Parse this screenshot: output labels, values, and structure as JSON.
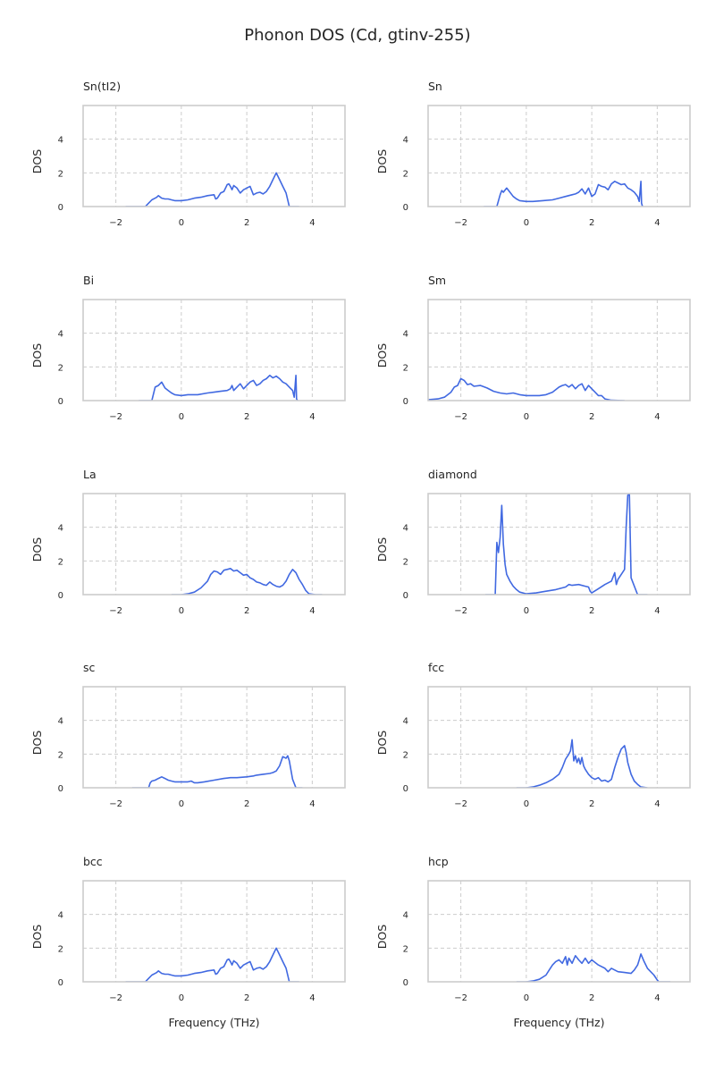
{
  "figure": {
    "title": "Phonon DOS (Cd, gtinv-255)"
  },
  "chart_data": [
    {
      "type": "line",
      "title": "Sn(tI2)",
      "xlabel": "",
      "ylabel": "DOS",
      "xlim": [
        -3,
        5
      ],
      "ylim": [
        0,
        6
      ],
      "xticks": [
        -2,
        0,
        2,
        4
      ],
      "yticks": [
        0,
        2,
        4
      ],
      "grid": true,
      "color": "#4169e1",
      "x": [
        -1.7,
        -1.1,
        -1.0,
        -0.9,
        -0.8,
        -0.75,
        -0.7,
        -0.6,
        -0.5,
        -0.4,
        -0.3,
        -0.2,
        0.0,
        0.2,
        0.4,
        0.6,
        0.8,
        1.0,
        1.05,
        1.1,
        1.2,
        1.3,
        1.4,
        1.45,
        1.5,
        1.55,
        1.6,
        1.7,
        1.8,
        1.9,
        2.0,
        2.1,
        2.2,
        2.3,
        2.4,
        2.5,
        2.6,
        2.7,
        2.8,
        2.9,
        3.0,
        3.1,
        3.2,
        3.3,
        3.6
      ],
      "y": [
        0,
        0,
        0.2,
        0.4,
        0.5,
        0.55,
        0.65,
        0.5,
        0.45,
        0.45,
        0.4,
        0.35,
        0.35,
        0.4,
        0.5,
        0.55,
        0.65,
        0.7,
        0.45,
        0.5,
        0.8,
        0.9,
        1.3,
        1.35,
        1.2,
        1.0,
        1.25,
        1.1,
        0.8,
        1.0,
        1.1,
        1.2,
        0.7,
        0.8,
        0.85,
        0.75,
        0.9,
        1.2,
        1.6,
        2.0,
        1.6,
        1.2,
        0.8,
        0.0,
        0.0
      ]
    },
    {
      "type": "line",
      "title": "Sn",
      "xlabel": "",
      "ylabel": "DOS",
      "xlim": [
        -3,
        5
      ],
      "ylim": [
        0,
        6
      ],
      "xticks": [
        -2,
        0,
        2,
        4
      ],
      "yticks": [
        0,
        2,
        4
      ],
      "grid": true,
      "color": "#4169e1",
      "x": [
        -1.3,
        -0.9,
        -0.8,
        -0.75,
        -0.7,
        -0.6,
        -0.5,
        -0.4,
        -0.3,
        -0.2,
        0.0,
        0.2,
        0.5,
        0.8,
        1.0,
        1.2,
        1.4,
        1.5,
        1.6,
        1.7,
        1.8,
        1.9,
        2.0,
        2.1,
        2.2,
        2.3,
        2.4,
        2.5,
        2.6,
        2.7,
        2.8,
        2.9,
        3.0,
        3.1,
        3.2,
        3.3,
        3.4,
        3.45,
        3.5,
        3.52,
        3.55
      ],
      "y": [
        0,
        0,
        0.7,
        0.95,
        0.85,
        1.1,
        0.85,
        0.6,
        0.45,
        0.35,
        0.3,
        0.3,
        0.35,
        0.4,
        0.5,
        0.6,
        0.7,
        0.75,
        0.85,
        1.05,
        0.75,
        1.1,
        0.6,
        0.75,
        1.3,
        1.2,
        1.15,
        1.0,
        1.35,
        1.5,
        1.4,
        1.3,
        1.35,
        1.1,
        1.0,
        0.85,
        0.6,
        0.3,
        1.5,
        0.2,
        0.0
      ]
    },
    {
      "type": "line",
      "title": "Bi",
      "xlabel": "",
      "ylabel": "DOS",
      "xlim": [
        -3,
        5
      ],
      "ylim": [
        0,
        6
      ],
      "xticks": [
        -2,
        0,
        2,
        4
      ],
      "yticks": [
        0,
        2,
        4
      ],
      "grid": true,
      "color": "#4169e1",
      "x": [
        -1.3,
        -0.9,
        -0.8,
        -0.7,
        -0.6,
        -0.5,
        -0.4,
        -0.3,
        -0.2,
        0.0,
        0.2,
        0.5,
        0.8,
        1.0,
        1.2,
        1.4,
        1.5,
        1.55,
        1.6,
        1.7,
        1.8,
        1.9,
        2.0,
        2.1,
        2.2,
        2.3,
        2.4,
        2.5,
        2.6,
        2.7,
        2.8,
        2.9,
        3.0,
        3.1,
        3.2,
        3.3,
        3.4,
        3.45,
        3.5,
        3.52,
        3.55
      ],
      "y": [
        0,
        0,
        0.8,
        0.9,
        1.1,
        0.75,
        0.6,
        0.45,
        0.35,
        0.3,
        0.35,
        0.35,
        0.45,
        0.5,
        0.55,
        0.6,
        0.7,
        0.9,
        0.6,
        0.8,
        1.0,
        0.7,
        0.9,
        1.1,
        1.2,
        0.9,
        1.0,
        1.2,
        1.3,
        1.5,
        1.35,
        1.45,
        1.3,
        1.1,
        1.0,
        0.8,
        0.6,
        0.2,
        1.5,
        0.1,
        0.0
      ]
    },
    {
      "type": "line",
      "title": "Sm",
      "xlabel": "",
      "ylabel": "DOS",
      "xlim": [
        -3,
        5
      ],
      "ylim": [
        0,
        6
      ],
      "xticks": [
        -2,
        0,
        2,
        4
      ],
      "yticks": [
        0,
        2,
        4
      ],
      "grid": true,
      "color": "#4169e1",
      "x": [
        -3.0,
        -2.7,
        -2.5,
        -2.3,
        -2.2,
        -2.1,
        -2.0,
        -1.9,
        -1.8,
        -1.7,
        -1.6,
        -1.4,
        -1.2,
        -1.0,
        -0.8,
        -0.6,
        -0.4,
        -0.2,
        0.0,
        0.2,
        0.4,
        0.6,
        0.8,
        1.0,
        1.1,
        1.2,
        1.3,
        1.4,
        1.5,
        1.6,
        1.7,
        1.8,
        1.9,
        2.0,
        2.1,
        2.2,
        2.3,
        2.4,
        2.6,
        3.0
      ],
      "y": [
        0.05,
        0.1,
        0.2,
        0.5,
        0.8,
        0.9,
        1.3,
        1.2,
        0.95,
        1.0,
        0.85,
        0.9,
        0.75,
        0.55,
        0.45,
        0.4,
        0.45,
        0.35,
        0.3,
        0.3,
        0.3,
        0.35,
        0.5,
        0.8,
        0.9,
        0.95,
        0.8,
        0.95,
        0.7,
        0.9,
        1.0,
        0.6,
        0.9,
        0.7,
        0.5,
        0.3,
        0.3,
        0.1,
        0.02,
        0.0
      ]
    },
    {
      "type": "line",
      "title": "La",
      "xlabel": "",
      "ylabel": "DOS",
      "xlim": [
        -3,
        5
      ],
      "ylim": [
        0,
        6
      ],
      "xticks": [
        -2,
        0,
        2,
        4
      ],
      "yticks": [
        0,
        2,
        4
      ],
      "grid": true,
      "color": "#4169e1",
      "x": [
        -0.3,
        0.0,
        0.2,
        0.4,
        0.6,
        0.8,
        0.9,
        1.0,
        1.1,
        1.2,
        1.3,
        1.4,
        1.5,
        1.6,
        1.7,
        1.8,
        1.9,
        2.0,
        2.1,
        2.2,
        2.3,
        2.4,
        2.5,
        2.6,
        2.7,
        2.8,
        2.9,
        3.0,
        3.1,
        3.2,
        3.3,
        3.4,
        3.5,
        3.6,
        3.7,
        3.8,
        3.9,
        4.1,
        4.3
      ],
      "y": [
        0,
        0,
        0.05,
        0.15,
        0.4,
        0.8,
        1.2,
        1.4,
        1.35,
        1.2,
        1.45,
        1.5,
        1.55,
        1.4,
        1.45,
        1.3,
        1.15,
        1.2,
        1.0,
        0.9,
        0.75,
        0.7,
        0.6,
        0.55,
        0.75,
        0.6,
        0.5,
        0.45,
        0.55,
        0.8,
        1.2,
        1.5,
        1.3,
        0.9,
        0.6,
        0.25,
        0.05,
        0.0,
        0.0
      ]
    },
    {
      "type": "line",
      "title": "diamond",
      "xlabel": "",
      "ylabel": "DOS",
      "xlim": [
        -3,
        5
      ],
      "ylim": [
        0,
        6
      ],
      "xticks": [
        -2,
        0,
        2,
        4
      ],
      "yticks": [
        0,
        2,
        4
      ],
      "grid": true,
      "color": "#4169e1",
      "x": [
        -1.25,
        -0.95,
        -0.9,
        -0.85,
        -0.8,
        -0.75,
        -0.7,
        -0.65,
        -0.6,
        -0.5,
        -0.4,
        -0.3,
        -0.2,
        0.0,
        0.3,
        0.6,
        0.9,
        1.2,
        1.3,
        1.4,
        1.6,
        1.8,
        1.9,
        1.95,
        2.0,
        2.2,
        2.4,
        2.6,
        2.7,
        2.75,
        2.8,
        2.9,
        3.0,
        3.05,
        3.1,
        3.15,
        3.2,
        3.4,
        3.7
      ],
      "y": [
        0,
        0,
        3.1,
        2.5,
        3.4,
        5.3,
        3.0,
        1.8,
        1.2,
        0.8,
        0.5,
        0.3,
        0.15,
        0.05,
        0.1,
        0.2,
        0.3,
        0.45,
        0.6,
        0.55,
        0.6,
        0.5,
        0.45,
        0.2,
        0.1,
        0.35,
        0.6,
        0.8,
        1.3,
        0.6,
        0.9,
        1.2,
        1.5,
        4.0,
        5.9,
        6.0,
        1.0,
        0.0,
        0.0
      ]
    },
    {
      "type": "line",
      "title": "sc",
      "xlabel": "",
      "ylabel": "DOS",
      "xlim": [
        -3,
        5
      ],
      "ylim": [
        0,
        6
      ],
      "xticks": [
        -2,
        0,
        2,
        4
      ],
      "yticks": [
        0,
        2,
        4
      ],
      "grid": true,
      "color": "#4169e1",
      "x": [
        -1.5,
        -1.0,
        -0.95,
        -0.9,
        -0.8,
        -0.7,
        -0.6,
        -0.5,
        -0.4,
        -0.3,
        -0.2,
        0.0,
        0.2,
        0.3,
        0.4,
        0.5,
        0.7,
        1.0,
        1.3,
        1.5,
        1.7,
        2.0,
        2.2,
        2.3,
        2.5,
        2.7,
        2.8,
        2.9,
        3.0,
        3.1,
        3.2,
        3.25,
        3.3,
        3.4,
        3.5,
        3.7
      ],
      "y": [
        0,
        0,
        0.3,
        0.4,
        0.45,
        0.55,
        0.65,
        0.55,
        0.45,
        0.4,
        0.35,
        0.35,
        0.35,
        0.4,
        0.3,
        0.3,
        0.35,
        0.45,
        0.55,
        0.6,
        0.6,
        0.65,
        0.7,
        0.75,
        0.8,
        0.85,
        0.9,
        1.0,
        1.3,
        1.85,
        1.75,
        1.9,
        1.6,
        0.5,
        0.0,
        0.0
      ]
    },
    {
      "type": "line",
      "title": "fcc",
      "xlabel": "",
      "ylabel": "DOS",
      "xlim": [
        -3,
        5
      ],
      "ylim": [
        0,
        6
      ],
      "xticks": [
        -2,
        0,
        2,
        4
      ],
      "yticks": [
        0,
        2,
        4
      ],
      "grid": true,
      "color": "#4169e1",
      "x": [
        -0.3,
        0.0,
        0.2,
        0.4,
        0.6,
        0.8,
        1.0,
        1.1,
        1.2,
        1.3,
        1.35,
        1.4,
        1.45,
        1.5,
        1.55,
        1.6,
        1.65,
        1.7,
        1.75,
        1.8,
        1.9,
        2.0,
        2.1,
        2.2,
        2.3,
        2.4,
        2.5,
        2.6,
        2.7,
        2.8,
        2.9,
        3.0,
        3.05,
        3.1,
        3.2,
        3.3,
        3.4,
        3.5,
        3.7
      ],
      "y": [
        0,
        0,
        0.05,
        0.15,
        0.3,
        0.5,
        0.8,
        1.2,
        1.7,
        2.0,
        2.2,
        2.85,
        1.6,
        1.9,
        1.5,
        1.75,
        1.4,
        1.8,
        1.3,
        1.1,
        0.8,
        0.6,
        0.5,
        0.6,
        0.4,
        0.45,
        0.35,
        0.5,
        1.2,
        1.8,
        2.3,
        2.5,
        2.1,
        1.5,
        0.8,
        0.4,
        0.2,
        0.05,
        0.0
      ]
    },
    {
      "type": "line",
      "title": "bcc",
      "xlabel": "Frequency (THz)",
      "ylabel": "DOS",
      "xlim": [
        -3,
        5
      ],
      "ylim": [
        0,
        6
      ],
      "xticks": [
        -2,
        0,
        2,
        4
      ],
      "yticks": [
        0,
        2,
        4
      ],
      "grid": true,
      "color": "#4169e1",
      "x": [
        -1.7,
        -1.1,
        -1.0,
        -0.9,
        -0.8,
        -0.75,
        -0.7,
        -0.6,
        -0.5,
        -0.4,
        -0.3,
        -0.2,
        0.0,
        0.2,
        0.4,
        0.6,
        0.8,
        1.0,
        1.05,
        1.1,
        1.2,
        1.3,
        1.4,
        1.45,
        1.5,
        1.55,
        1.6,
        1.7,
        1.8,
        1.9,
        2.0,
        2.1,
        2.2,
        2.3,
        2.4,
        2.5,
        2.6,
        2.7,
        2.8,
        2.9,
        3.0,
        3.1,
        3.2,
        3.3,
        3.6
      ],
      "y": [
        0,
        0,
        0.2,
        0.4,
        0.5,
        0.55,
        0.65,
        0.5,
        0.45,
        0.45,
        0.4,
        0.35,
        0.35,
        0.4,
        0.5,
        0.55,
        0.65,
        0.7,
        0.45,
        0.5,
        0.8,
        0.9,
        1.3,
        1.35,
        1.2,
        1.0,
        1.25,
        1.1,
        0.8,
        1.0,
        1.1,
        1.2,
        0.7,
        0.8,
        0.85,
        0.75,
        0.9,
        1.2,
        1.6,
        2.0,
        1.6,
        1.2,
        0.8,
        0.0,
        0.0
      ]
    },
    {
      "type": "line",
      "title": "hcp",
      "xlabel": "Frequency (THz)",
      "ylabel": "DOS",
      "xlim": [
        -3,
        5
      ],
      "ylim": [
        0,
        6
      ],
      "xticks": [
        -2,
        0,
        2,
        4
      ],
      "yticks": [
        0,
        2,
        4
      ],
      "grid": true,
      "color": "#4169e1",
      "x": [
        -0.3,
        0.0,
        0.2,
        0.4,
        0.6,
        0.7,
        0.8,
        0.9,
        1.0,
        1.1,
        1.2,
        1.25,
        1.3,
        1.4,
        1.5,
        1.6,
        1.7,
        1.8,
        1.9,
        2.0,
        2.2,
        2.4,
        2.5,
        2.6,
        2.8,
        3.0,
        3.2,
        3.3,
        3.4,
        3.45,
        3.5,
        3.6,
        3.7,
        3.8,
        3.9,
        4.0,
        4.05,
        4.2,
        4.4
      ],
      "y": [
        0,
        0,
        0.05,
        0.15,
        0.4,
        0.7,
        1.0,
        1.2,
        1.3,
        1.1,
        1.5,
        1.0,
        1.4,
        1.1,
        1.55,
        1.3,
        1.1,
        1.4,
        1.1,
        1.3,
        1.0,
        0.8,
        0.6,
        0.8,
        0.6,
        0.55,
        0.5,
        0.7,
        1.0,
        1.3,
        1.65,
        1.2,
        0.8,
        0.6,
        0.4,
        0.1,
        0.0,
        0.0,
        0.0
      ]
    }
  ]
}
